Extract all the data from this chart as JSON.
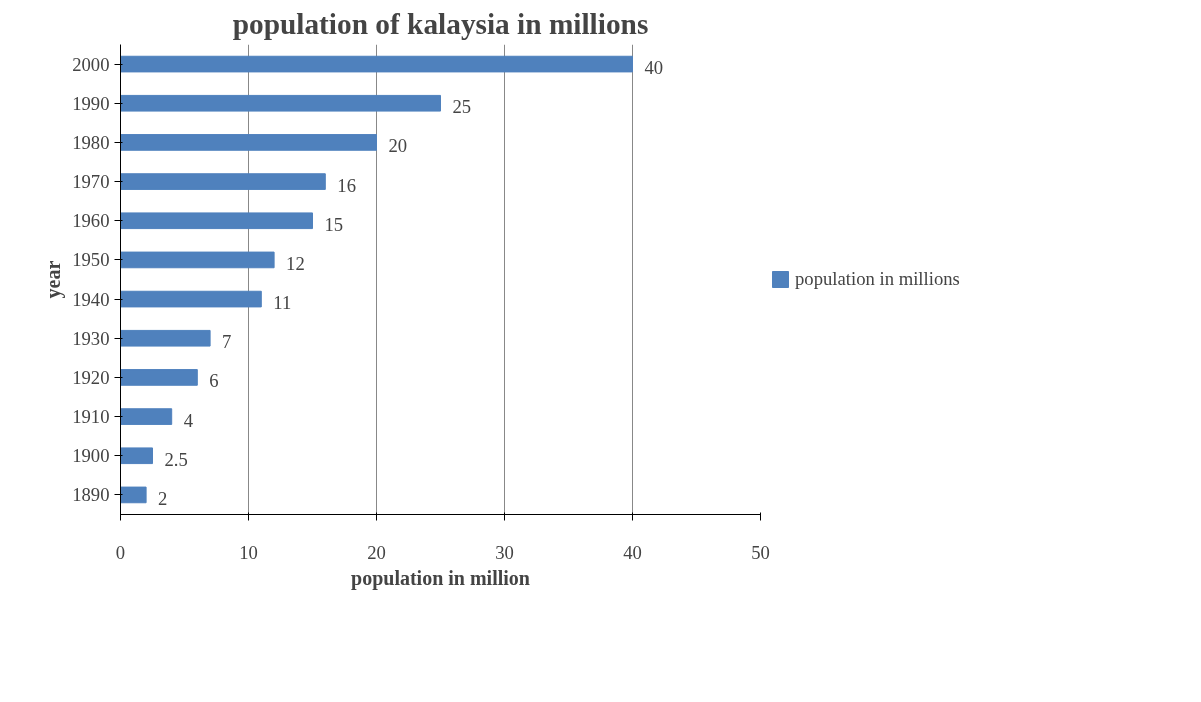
{
  "chart_data": {
    "type": "bar",
    "orientation": "horizontal",
    "title": "population of kalaysia in millions",
    "xlabel": "population in million",
    "ylabel": "year",
    "categories": [
      "2000",
      "1990",
      "1980",
      "1970",
      "1960",
      "1950",
      "1940",
      "1930",
      "1920",
      "1910",
      "1900",
      "1890"
    ],
    "series": [
      {
        "name": "population in millions",
        "color": "#4f81bd",
        "values": [
          40,
          25,
          20,
          16,
          15,
          12,
          11,
          7,
          6,
          4,
          2.5,
          2
        ]
      }
    ],
    "xlim": [
      0,
      50
    ],
    "xticks": [
      0,
      10,
      20,
      30,
      40,
      50
    ],
    "grid": "x",
    "legend": "right",
    "data_labels": true
  }
}
